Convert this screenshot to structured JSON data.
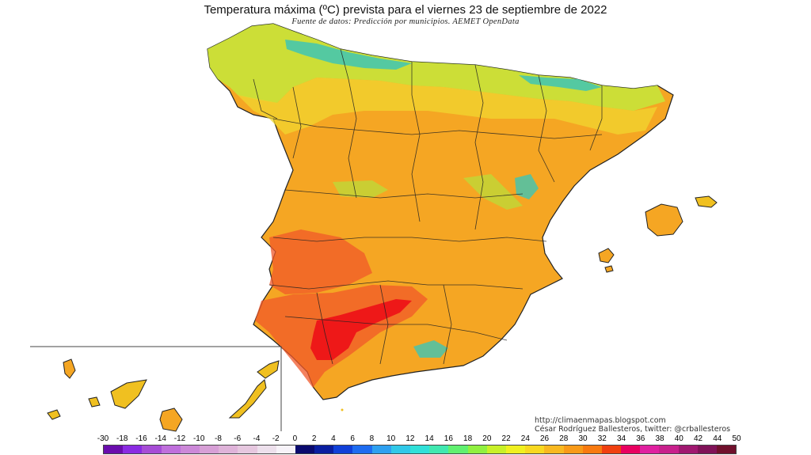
{
  "map": {
    "title": "Temperatura máxima (ºC) prevista para el viernes 23 de septiembre de 2022",
    "subtitle": "Fuente de datos: Predicción por municipios. AEMET OpenData",
    "credit_url": "http://climaenmapas.blogspot.com",
    "credit_author": "César Rodríguez Ballesteros, twitter: @crballesteros"
  },
  "legend": {
    "labels": [
      "-30",
      "-18",
      "-16",
      "-14",
      "-12",
      "-10",
      "-8",
      "-6",
      "-4",
      "-2",
      "0",
      "2",
      "4",
      "6",
      "8",
      "10",
      "12",
      "14",
      "16",
      "18",
      "20",
      "22",
      "24",
      "26",
      "28",
      "30",
      "32",
      "34",
      "36",
      "38",
      "40",
      "42",
      "44",
      "50"
    ],
    "colors": [
      "#6a0dad",
      "#8a2be2",
      "#a64dd6",
      "#bf6fdc",
      "#cc88d8",
      "#d79fd6",
      "#dfb3d9",
      "#e6c7df",
      "#ede0ec",
      "#f7f3f9",
      "#0a0a6e",
      "#0a1ea0",
      "#1040d8",
      "#1e6cf0",
      "#2ea0f0",
      "#30c8e8",
      "#30e0d8",
      "#40e8b0",
      "#60f070",
      "#90f040",
      "#c8f028",
      "#f0f020",
      "#f8d820",
      "#f8b820",
      "#f89a18",
      "#f87a10",
      "#f04010",
      "#e80060",
      "#e020a0",
      "#c8208c",
      "#a01870",
      "#801258",
      "#70102c"
    ]
  },
  "colors": {
    "land_base": "#f5a623",
    "land_green": "#b8e03a",
    "land_yellow": "#eee43a",
    "land_blue": "#3ec6b4",
    "land_hot": "#f0582a",
    "land_red": "#ee1818",
    "border": "#222222"
  }
}
